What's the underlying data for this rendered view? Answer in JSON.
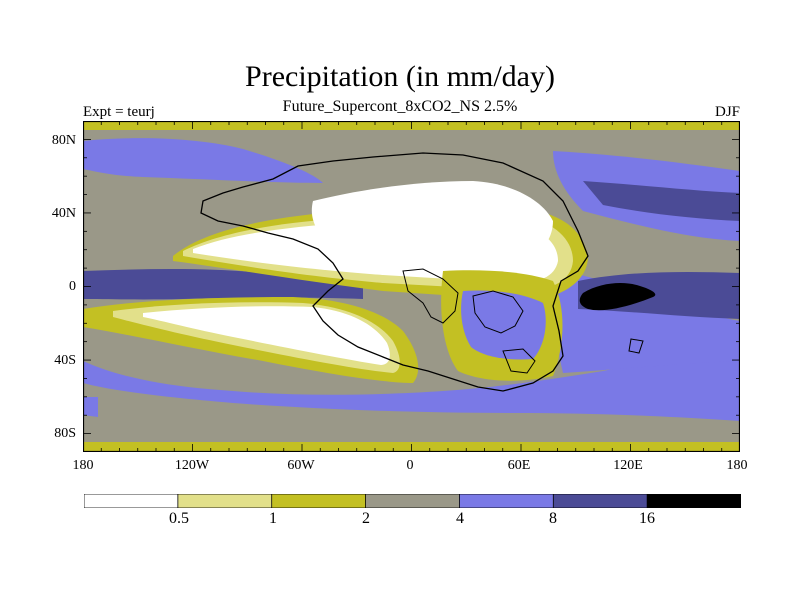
{
  "title": "Precipitation (in mm/day)",
  "subtitle": "Future_Supercont_8xCO2_NS 2.5%",
  "left_label": "Expt = teurj",
  "right_label": "DJF",
  "map": {
    "y_axis_labels": [
      "80N",
      "40N",
      "0",
      "40S",
      "80S"
    ],
    "x_axis_labels": [
      "180",
      "120W",
      "60W",
      "0",
      "60E",
      "120E",
      "180"
    ]
  },
  "colorbar": {
    "colors": [
      "#ffffff",
      "#e2e08a",
      "#c3c023",
      "#9a9888",
      "#7a79e6",
      "#4b4b96",
      "#000000"
    ],
    "labels": [
      "0.5",
      "1",
      "2",
      "4",
      "8",
      "16"
    ]
  }
}
